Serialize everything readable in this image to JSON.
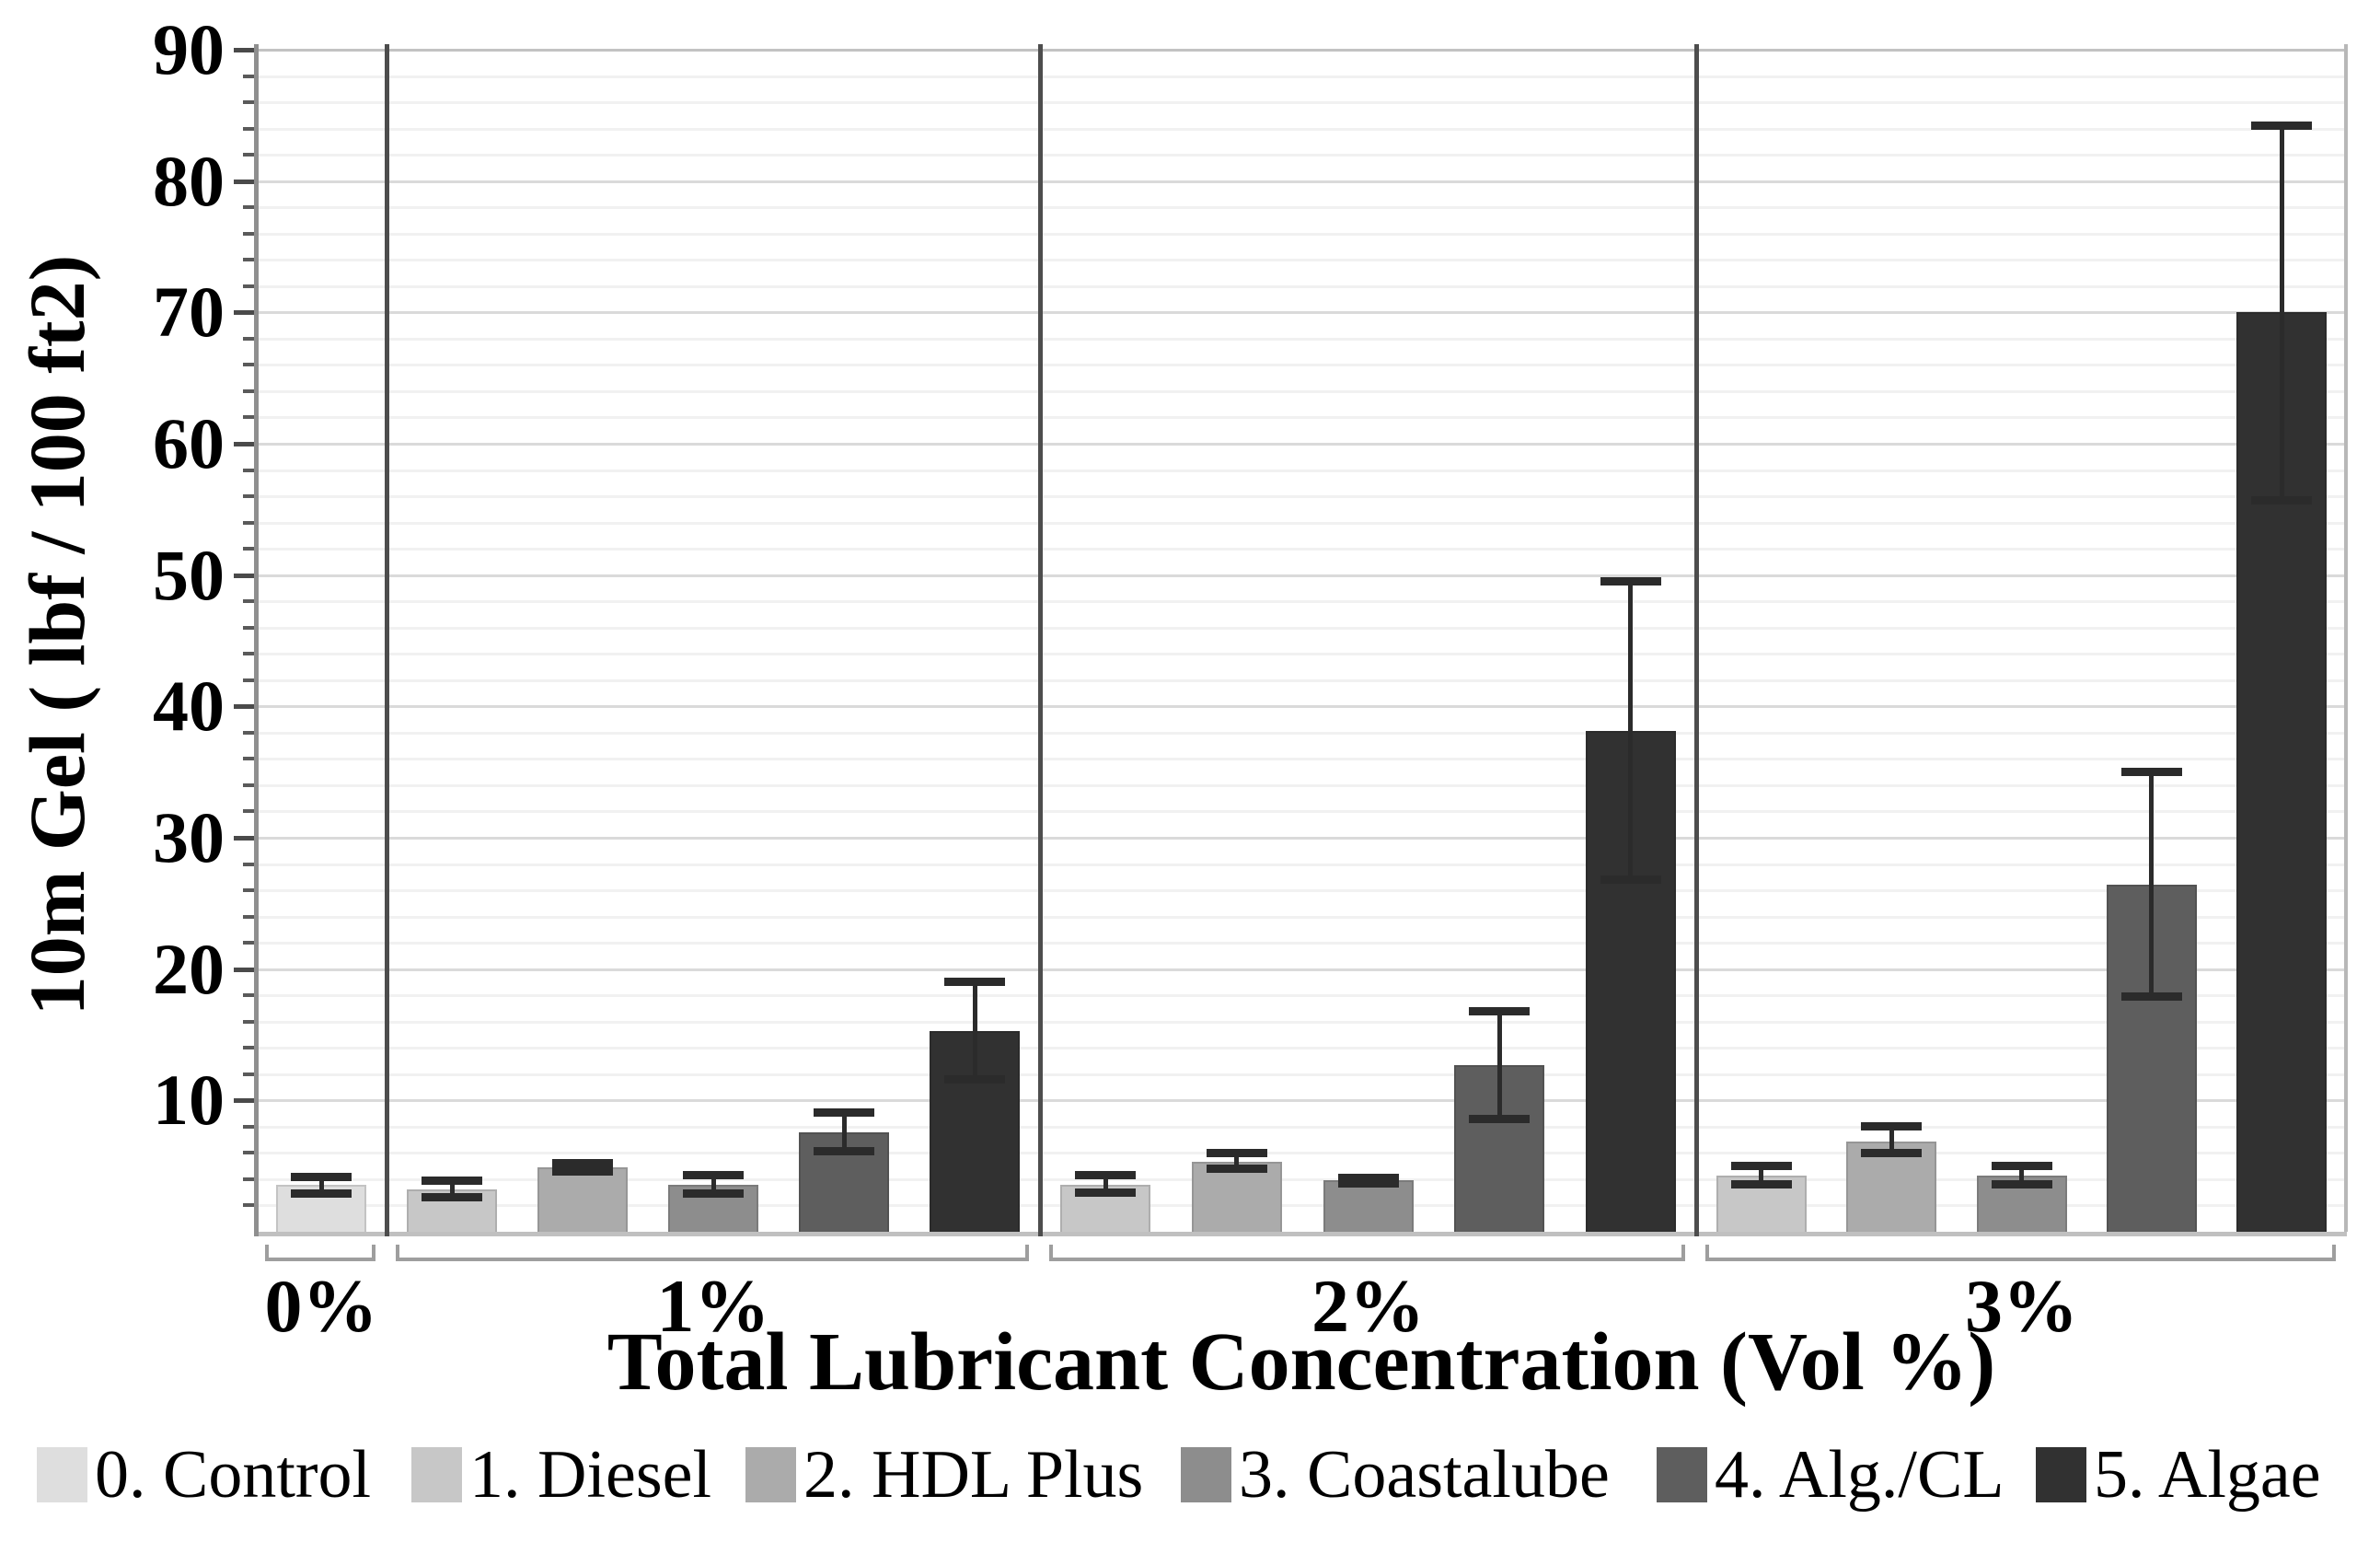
{
  "chart_data": {
    "type": "bar",
    "title": "",
    "xlabel": "Total Lubricant Concentration (Vol %)",
    "ylabel": "10m Gel ( lbf / 100 ft2)",
    "ylim": [
      0,
      90
    ],
    "y_major_tick_step": 10,
    "y_minor_tick_step": 2,
    "y_tick_labels": [
      "10",
      "20",
      "30",
      "40",
      "50",
      "60",
      "70",
      "80",
      "90"
    ],
    "grid": true,
    "legend_position": "bottom",
    "categories": [
      "0%",
      "1%",
      "2%",
      "3%"
    ],
    "series": [
      {
        "name": "0. Control",
        "color": "#dedede",
        "values": [
          3.6,
          null,
          null,
          null
        ],
        "err_low": [
          2.9,
          null,
          null,
          null
        ],
        "err_high": [
          4.2,
          null,
          null,
          null
        ]
      },
      {
        "name": "1. Diesel",
        "color": "#c7c7c7",
        "values": [
          null,
          3.2,
          3.6,
          4.3
        ],
        "err_low": [
          null,
          2.6,
          3.0,
          3.6
        ],
        "err_high": [
          null,
          3.9,
          4.3,
          5.0
        ]
      },
      {
        "name": "2. HDL Plus",
        "color": "#ababab",
        "values": [
          null,
          4.9,
          5.3,
          6.9
        ],
        "err_low": [
          null,
          4.6,
          4.8,
          6.0
        ],
        "err_high": [
          null,
          5.2,
          6.0,
          8.0
        ]
      },
      {
        "name": "3. Coastalube",
        "color": "#8d8d8d",
        "values": [
          null,
          3.6,
          3.9,
          4.3
        ],
        "err_low": [
          null,
          2.9,
          3.7,
          3.6
        ],
        "err_high": [
          null,
          4.3,
          4.1,
          5.0
        ]
      },
      {
        "name": "4. Alg./CL",
        "color": "#5e5e5e",
        "values": [
          null,
          7.6,
          12.7,
          26.4
        ],
        "err_low": [
          null,
          6.1,
          8.6,
          17.9
        ],
        "err_high": [
          null,
          9.1,
          16.8,
          35.0
        ]
      },
      {
        "name": "5. Algae",
        "color": "#313131",
        "values": [
          null,
          15.3,
          38.1,
          70.0
        ],
        "err_low": [
          null,
          11.6,
          26.8,
          55.7
        ],
        "err_high": [
          null,
          19.0,
          49.5,
          84.2
        ]
      }
    ]
  }
}
